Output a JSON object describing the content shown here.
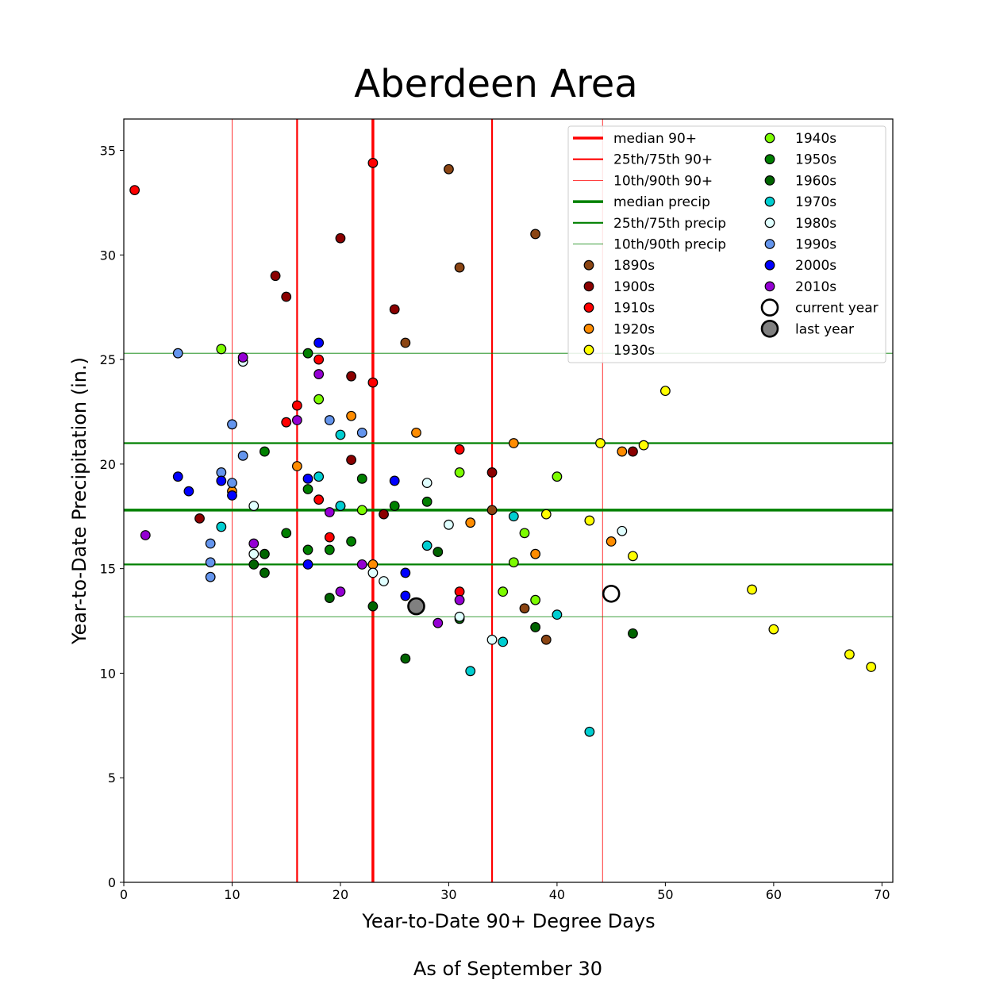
{
  "chart_data": {
    "type": "scatter",
    "title": "Aberdeen Area",
    "xlabel": "Year-to-Date 90+ Degree Days",
    "ylabel": "Year-to-Date Precipitation (in.)",
    "footnote": "As of September 30",
    "xlim": [
      0,
      71
    ],
    "ylim": [
      0,
      36.5
    ],
    "xticks": [
      0,
      10,
      20,
      30,
      40,
      50,
      60,
      70
    ],
    "yticks": [
      0,
      5,
      10,
      15,
      20,
      25,
      30,
      35
    ],
    "grid": false,
    "legend_position": "top-right",
    "reference_lines": {
      "vertical": [
        {
          "name": "median 90+",
          "value": 23,
          "color": "#ff0000",
          "weight": "thick"
        },
        {
          "name": "25th/75th 90+",
          "values": [
            16,
            34
          ],
          "color": "#ff0000",
          "weight": "medium"
        },
        {
          "name": "10th/90th 90+",
          "values": [
            10,
            44.2
          ],
          "color": "#ff0000",
          "weight": "thin"
        }
      ],
      "horizontal": [
        {
          "name": "median precip",
          "value": 17.8,
          "color": "#008000",
          "weight": "thick"
        },
        {
          "name": "25th/75th precip",
          "values": [
            15.2,
            21.0
          ],
          "color": "#008000",
          "weight": "medium"
        },
        {
          "name": "10th/90th precip",
          "values": [
            12.7,
            25.3
          ],
          "color": "#008000",
          "weight": "thin"
        }
      ]
    },
    "series": [
      {
        "name": "1890s",
        "color": "#8b4513",
        "points": [
          [
            30,
            34.1
          ],
          [
            38,
            31.0
          ],
          [
            31,
            29.4
          ],
          [
            26,
            25.8
          ],
          [
            34,
            17.8
          ],
          [
            20,
            18.0
          ],
          [
            37,
            13.1
          ],
          [
            39,
            11.6
          ]
        ]
      },
      {
        "name": "1900s",
        "color": "#8b0000",
        "points": [
          [
            14,
            29.0
          ],
          [
            15,
            28.0
          ],
          [
            25,
            27.4
          ],
          [
            21,
            24.2
          ],
          [
            21,
            20.2
          ],
          [
            34,
            19.6
          ],
          [
            47,
            20.6
          ],
          [
            24,
            17.6
          ],
          [
            7,
            17.4
          ],
          [
            20,
            30.8
          ]
        ]
      },
      {
        "name": "1910s",
        "color": "#ff0000",
        "points": [
          [
            1,
            33.1
          ],
          [
            23,
            34.4
          ],
          [
            18,
            25.0
          ],
          [
            16,
            22.8
          ],
          [
            15,
            22.0
          ],
          [
            23,
            23.9
          ],
          [
            31,
            20.7
          ],
          [
            18,
            18.3
          ],
          [
            19,
            16.5
          ],
          [
            31,
            13.9
          ]
        ]
      },
      {
        "name": "1920s",
        "color": "#ff8c00",
        "points": [
          [
            21,
            22.3
          ],
          [
            27,
            21.5
          ],
          [
            36,
            21.0
          ],
          [
            46,
            20.6
          ],
          [
            16,
            19.9
          ],
          [
            10,
            18.7
          ],
          [
            32,
            17.2
          ],
          [
            45,
            16.3
          ],
          [
            38,
            15.7
          ],
          [
            23,
            15.2
          ]
        ]
      },
      {
        "name": "1930s",
        "color": "#ffff00",
        "points": [
          [
            50,
            23.5
          ],
          [
            44,
            21.0
          ],
          [
            48,
            20.9
          ],
          [
            39,
            17.6
          ],
          [
            43,
            17.3
          ],
          [
            47,
            15.6
          ],
          [
            58,
            14.0
          ],
          [
            60,
            12.1
          ],
          [
            67,
            10.9
          ],
          [
            69,
            10.3
          ]
        ]
      },
      {
        "name": "1940s",
        "color": "#7cfc00",
        "points": [
          [
            9,
            25.5
          ],
          [
            18,
            23.1
          ],
          [
            31,
            19.6
          ],
          [
            40,
            19.4
          ],
          [
            22,
            17.8
          ],
          [
            37,
            16.7
          ],
          [
            36,
            15.3
          ],
          [
            35,
            13.9
          ],
          [
            38,
            13.5
          ]
        ]
      },
      {
        "name": "1950s",
        "color": "#008000",
        "points": [
          [
            17,
            25.3
          ],
          [
            13,
            20.6
          ],
          [
            22,
            19.3
          ],
          [
            17,
            18.8
          ],
          [
            28,
            18.2
          ],
          [
            25,
            18.0
          ],
          [
            15,
            16.7
          ],
          [
            21,
            16.3
          ],
          [
            17,
            15.9
          ],
          [
            19,
            15.9
          ]
        ]
      },
      {
        "name": "1960s",
        "color": "#006400",
        "points": [
          [
            13,
            15.7
          ],
          [
            12,
            15.2
          ],
          [
            13,
            14.8
          ],
          [
            29,
            15.8
          ],
          [
            19,
            13.6
          ],
          [
            23,
            13.2
          ],
          [
            31,
            12.6
          ],
          [
            38,
            12.2
          ],
          [
            47,
            11.9
          ],
          [
            26,
            10.7
          ]
        ]
      },
      {
        "name": "1970s",
        "color": "#00ced1",
        "points": [
          [
            20,
            21.4
          ],
          [
            18,
            19.4
          ],
          [
            20,
            18.0
          ],
          [
            36,
            17.5
          ],
          [
            9,
            17.0
          ],
          [
            28,
            16.1
          ],
          [
            40,
            12.8
          ],
          [
            35,
            11.5
          ],
          [
            32,
            10.1
          ],
          [
            43,
            7.2
          ]
        ]
      },
      {
        "name": "1980s",
        "color": "#e0ffff",
        "points": [
          [
            11,
            24.9
          ],
          [
            28,
            19.1
          ],
          [
            12,
            18.0
          ],
          [
            30,
            17.1
          ],
          [
            46,
            16.8
          ],
          [
            12,
            15.7
          ],
          [
            23,
            14.8
          ],
          [
            24,
            14.4
          ],
          [
            31,
            12.7
          ],
          [
            34,
            11.6
          ]
        ]
      },
      {
        "name": "1990s",
        "color": "#6495ed",
        "points": [
          [
            5,
            25.3
          ],
          [
            10,
            21.9
          ],
          [
            19,
            22.1
          ],
          [
            22,
            21.5
          ],
          [
            11,
            20.4
          ],
          [
            9,
            19.6
          ],
          [
            10,
            19.1
          ],
          [
            8,
            16.2
          ],
          [
            8,
            15.3
          ],
          [
            8,
            14.6
          ]
        ]
      },
      {
        "name": "2000s",
        "color": "#0000ff",
        "points": [
          [
            18,
            25.8
          ],
          [
            5,
            19.4
          ],
          [
            9,
            19.2
          ],
          [
            25,
            19.2
          ],
          [
            17,
            19.3
          ],
          [
            6,
            18.7
          ],
          [
            10,
            18.5
          ],
          [
            17,
            15.2
          ],
          [
            26,
            14.8
          ],
          [
            26,
            13.7
          ]
        ]
      },
      {
        "name": "2010s",
        "color": "#9400d3",
        "points": [
          [
            11,
            25.1
          ],
          [
            18,
            24.3
          ],
          [
            16,
            22.1
          ],
          [
            19,
            17.7
          ],
          [
            2,
            16.6
          ],
          [
            12,
            16.2
          ],
          [
            22,
            15.2
          ],
          [
            20,
            13.9
          ],
          [
            31,
            13.5
          ],
          [
            29,
            12.4
          ]
        ]
      }
    ],
    "highlights": [
      {
        "name": "current year",
        "x": 45,
        "y": 13.8,
        "color": "#ffffff"
      },
      {
        "name": "last year",
        "x": 27,
        "y": 13.2,
        "color": "#808080"
      }
    ]
  }
}
